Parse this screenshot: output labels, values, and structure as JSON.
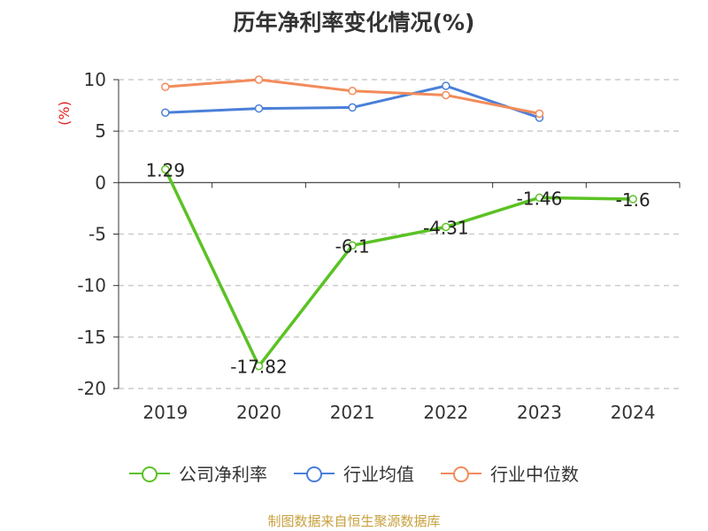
{
  "chart_data": {
    "type": "line",
    "title": "历年净利率变化情况(%)",
    "ylabel": "(%)",
    "xlabel": "",
    "categories": [
      "2019",
      "2020",
      "2021",
      "2022",
      "2023",
      "2024"
    ],
    "ylim": [
      -20,
      10
    ],
    "yticks": [
      10,
      5,
      0,
      -5,
      -10,
      -15,
      -20
    ],
    "grid": "horizontal-dashed",
    "legend_position": "bottom",
    "series": [
      {
        "name": "公司净利率",
        "color": "#5bc224",
        "values": [
          1.29,
          -17.82,
          -6.1,
          -4.31,
          -1.46,
          -1.6
        ],
        "labels": [
          "1.29",
          "-17.82",
          "-6.1",
          "-4.31",
          "-1.46",
          "-1.6"
        ]
      },
      {
        "name": "行业均值",
        "color": "#4a7fd8",
        "values": [
          6.8,
          7.2,
          7.3,
          9.4,
          6.3,
          null
        ]
      },
      {
        "name": "行业中位数",
        "color": "#f28b5a",
        "values": [
          9.3,
          10.0,
          8.9,
          8.5,
          6.7,
          null
        ]
      }
    ]
  },
  "colors": {
    "title": "#333333",
    "ylabel": "#e02020",
    "footer": "#c8a13e",
    "grid": "#cccccc",
    "axis": "#333333"
  },
  "footer": "制图数据来自恒生聚源数据库"
}
